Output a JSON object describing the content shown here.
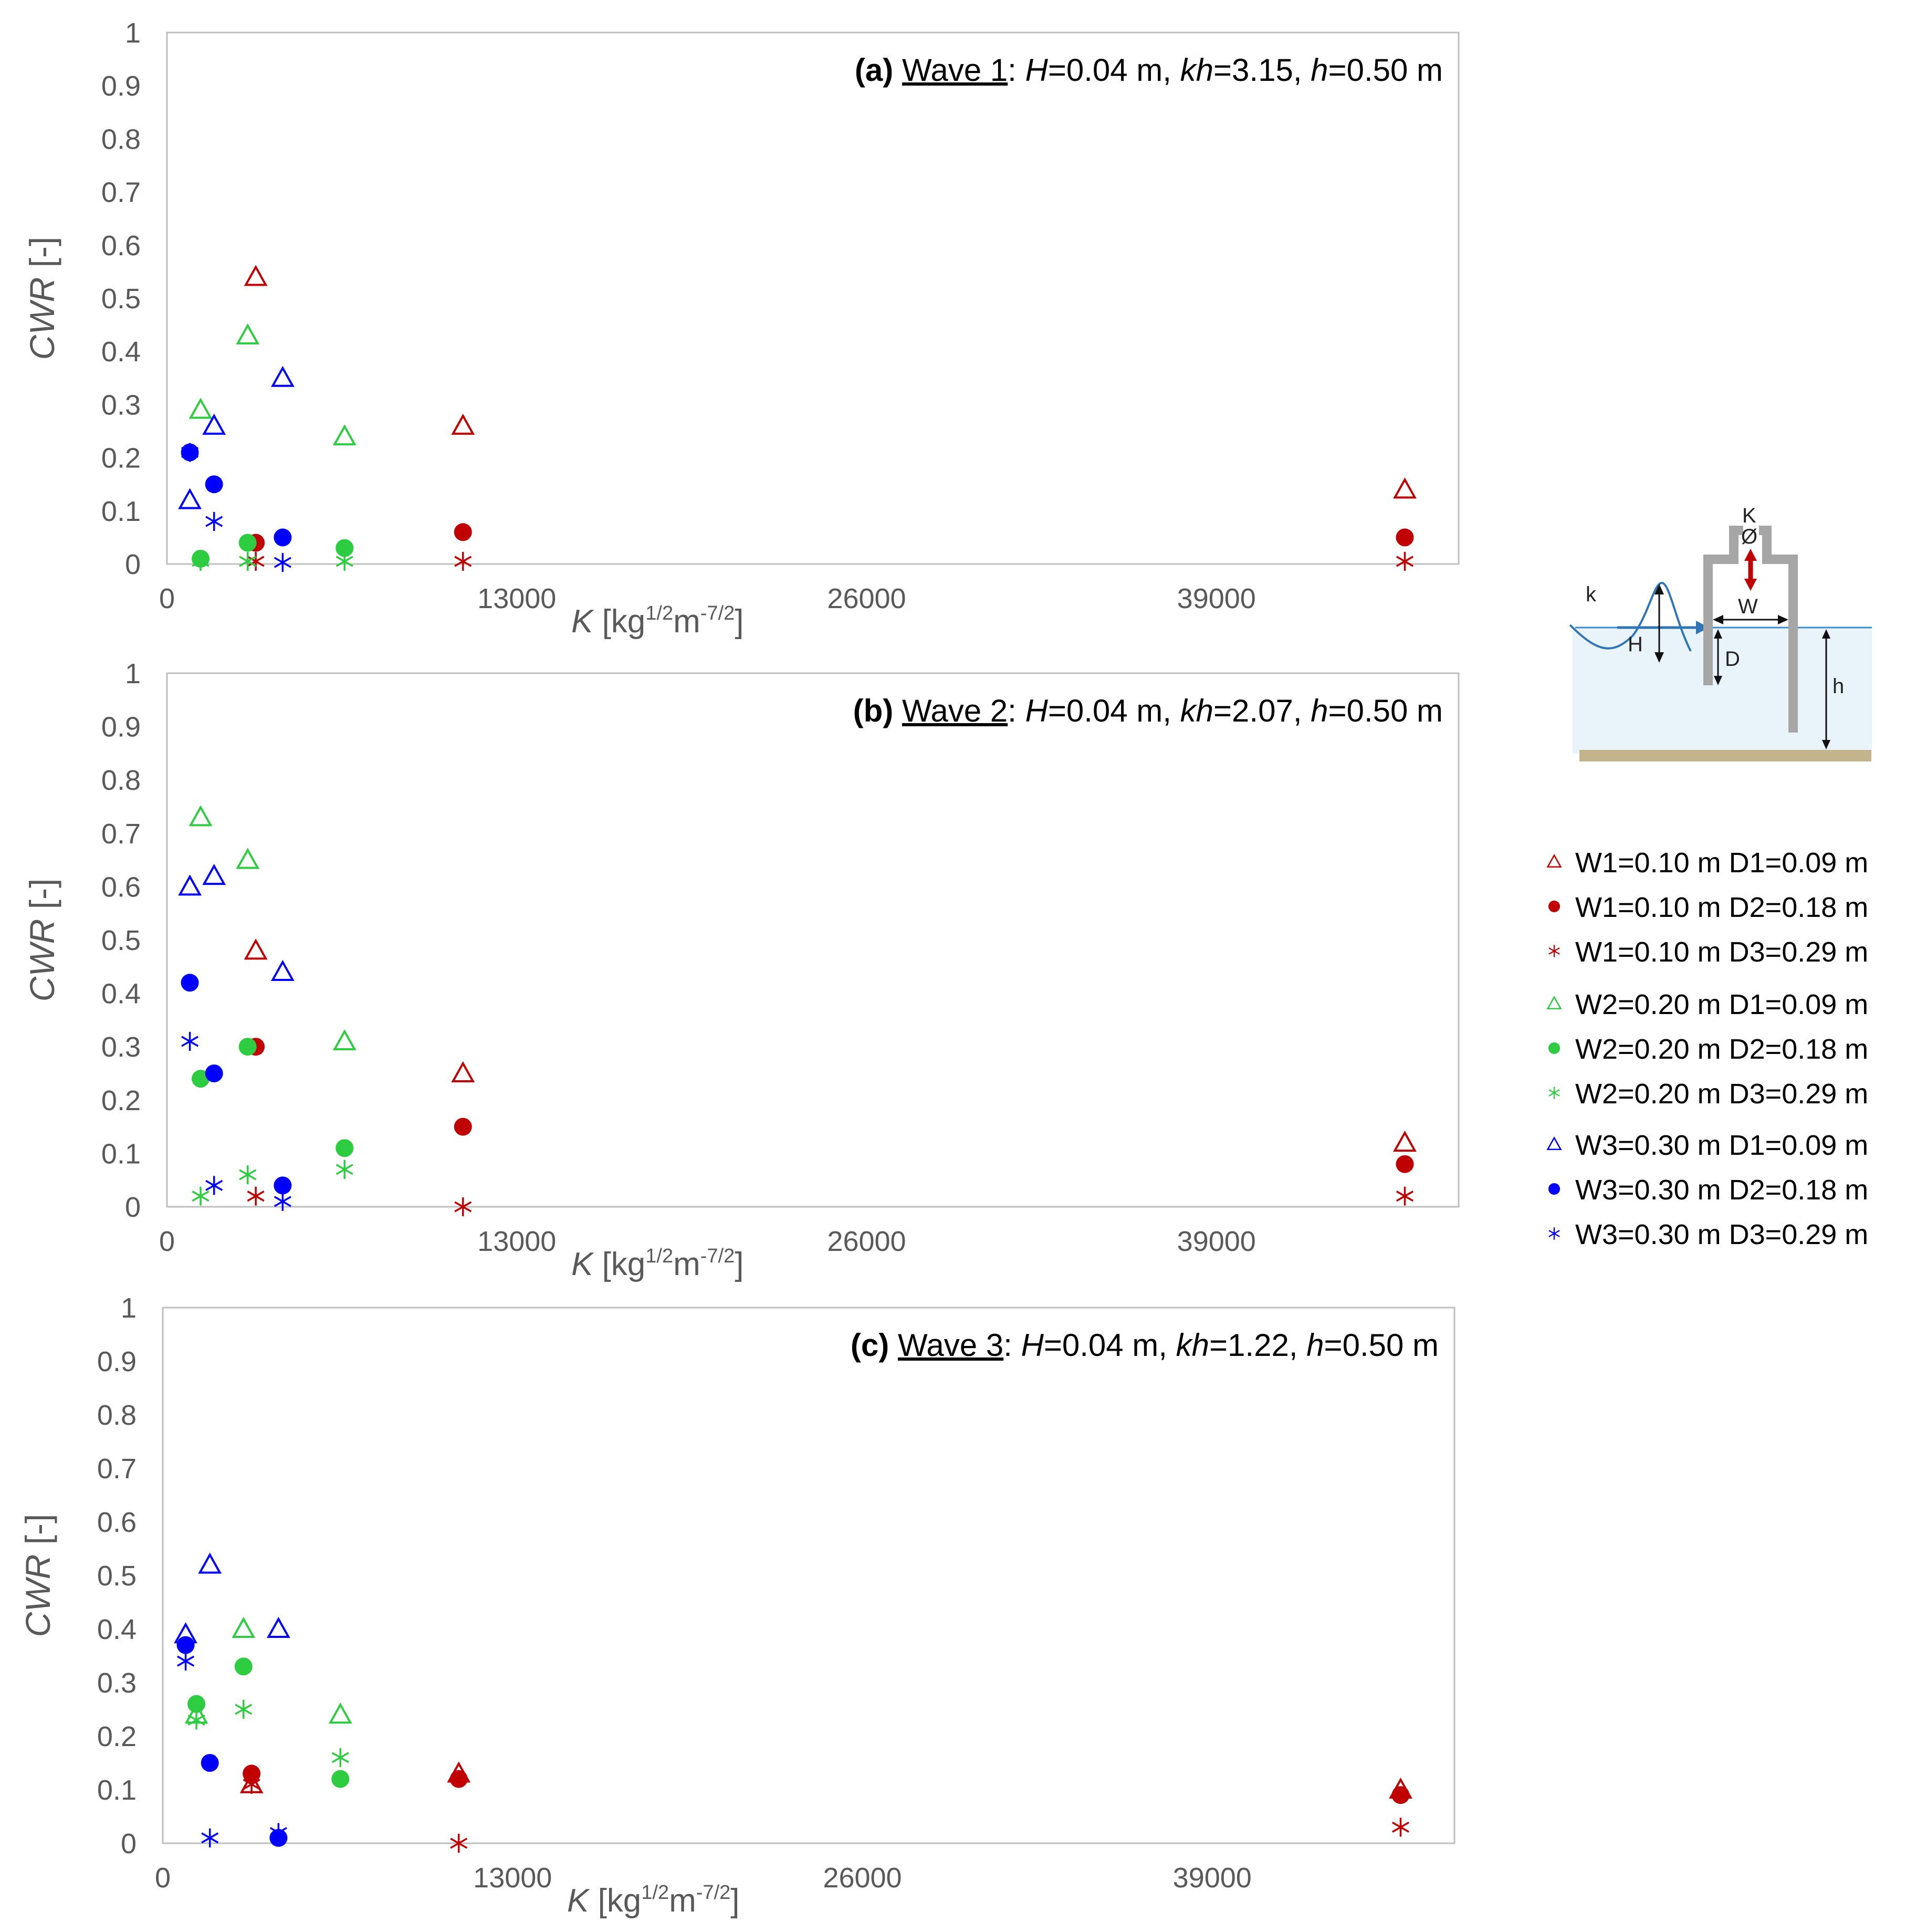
{
  "colors": {
    "W1": "#c00000",
    "W2": "#2ecc40",
    "W3": "#0000ff",
    "axis": "#bfbfbf",
    "text": "#595959"
  },
  "axes": {
    "ylabel": "CWR [-]",
    "ylabel_main": "CWR",
    "ylabel_unit": " [-]",
    "xlabel_var": "K",
    "xlabel_open": " [kg",
    "xlabel_exp1": "1/2",
    "xlabel_mid": "m",
    "xlabel_exp2": "-7/2",
    "xlabel_close": "]",
    "xlim": [
      0,
      48000
    ],
    "ylim": [
      0,
      1
    ],
    "xticks": [
      "0",
      "13000",
      "26000",
      "39000"
    ],
    "yticks": [
      "0",
      "0.1",
      "0.2",
      "0.3",
      "0.4",
      "0.5",
      "0.6",
      "0.7",
      "0.8",
      "0.9",
      "1"
    ]
  },
  "legend": {
    "entries": [
      {
        "key": "W1D1",
        "label": "W1=0.10 m D1=0.09 m",
        "marker": "triangle",
        "color": "#c00000"
      },
      {
        "key": "W1D2",
        "label": "W1=0.10 m D2=0.18 m",
        "marker": "circle",
        "color": "#c00000"
      },
      {
        "key": "W1D3",
        "label": "W1=0.10 m D3=0.29 m",
        "marker": "star",
        "color": "#c00000"
      },
      {
        "key": "W2D1",
        "label": "W2=0.20 m D1=0.09 m",
        "marker": "triangle",
        "color": "#2ecc40"
      },
      {
        "key": "W2D2",
        "label": "W2=0.20 m D2=0.18 m",
        "marker": "circle",
        "color": "#2ecc40"
      },
      {
        "key": "W2D3",
        "label": "W2=0.20 m D3=0.29 m",
        "marker": "star",
        "color": "#2ecc40"
      },
      {
        "key": "W3D1",
        "label": "W3=0.30 m D1=0.09 m",
        "marker": "triangle",
        "color": "#0000ff"
      },
      {
        "key": "W3D2",
        "label": "W3=0.30 m D2=0.18 m",
        "marker": "circle",
        "color": "#0000ff"
      },
      {
        "key": "W3D3",
        "label": "W3=0.30 m D3=0.29 m",
        "marker": "star",
        "color": "#0000ff"
      }
    ]
  },
  "diagram": {
    "K": "K",
    "k": "k",
    "H": "H",
    "W": "W",
    "D": "D",
    "h": "h",
    "valve": "Ø"
  },
  "chart_data": [
    {
      "type": "scatter",
      "panel": "(a)",
      "wave": "Wave 1",
      "H": "0.04 m",
      "kh": "3.15",
      "h": "0.50 m",
      "series": [
        {
          "key": "W1D1",
          "x": [
            3300,
            11000,
            46000
          ],
          "y": [
            0.54,
            0.26,
            0.14
          ]
        },
        {
          "key": "W1D2",
          "x": [
            3300,
            11000,
            46000
          ],
          "y": [
            0.04,
            0.06,
            0.05
          ]
        },
        {
          "key": "W1D3",
          "x": [
            3300,
            11000,
            46000
          ],
          "y": [
            0.005,
            0.005,
            0.005
          ]
        },
        {
          "key": "W2D1",
          "x": [
            1250,
            3000,
            6600
          ],
          "y": [
            0.29,
            0.43,
            0.24
          ]
        },
        {
          "key": "W2D2",
          "x": [
            1250,
            3000,
            6600
          ],
          "y": [
            0.01,
            0.04,
            0.03
          ]
        },
        {
          "key": "W2D3",
          "x": [
            1250,
            3000,
            6600
          ],
          "y": [
            0.005,
            0.005,
            0.005
          ]
        },
        {
          "key": "W3D1",
          "x": [
            850,
            1750,
            4300
          ],
          "y": [
            0.12,
            0.26,
            0.35
          ]
        },
        {
          "key": "W3D2",
          "x": [
            850,
            1750,
            4300
          ],
          "y": [
            0.21,
            0.15,
            0.05
          ]
        },
        {
          "key": "W3D3",
          "x": [
            850,
            1750,
            4300
          ],
          "y": [
            0.21,
            0.08,
            0.003
          ]
        }
      ]
    },
    {
      "type": "scatter",
      "panel": "(b)",
      "wave": "Wave 2",
      "H": "0.04 m",
      "kh": "2.07",
      "h": "0.50 m",
      "series": [
        {
          "key": "W1D1",
          "x": [
            3300,
            11000,
            46000
          ],
          "y": [
            0.48,
            0.25,
            0.12
          ]
        },
        {
          "key": "W1D2",
          "x": [
            3300,
            11000,
            46000
          ],
          "y": [
            0.3,
            0.15,
            0.08
          ]
        },
        {
          "key": "W1D3",
          "x": [
            3300,
            11000,
            46000
          ],
          "y": [
            0.02,
            0.0,
            0.02
          ]
        },
        {
          "key": "W2D1",
          "x": [
            1250,
            3000,
            6600
          ],
          "y": [
            0.73,
            0.65,
            0.31
          ]
        },
        {
          "key": "W2D2",
          "x": [
            1250,
            3000,
            6600
          ],
          "y": [
            0.24,
            0.3,
            0.11
          ]
        },
        {
          "key": "W2D3",
          "x": [
            1250,
            3000,
            6600
          ],
          "y": [
            0.02,
            0.06,
            0.07
          ]
        },
        {
          "key": "W3D1",
          "x": [
            850,
            1750,
            4300
          ],
          "y": [
            0.6,
            0.62,
            0.44
          ]
        },
        {
          "key": "W3D2",
          "x": [
            850,
            1750,
            4300
          ],
          "y": [
            0.42,
            0.25,
            0.04
          ]
        },
        {
          "key": "W3D3",
          "x": [
            850,
            1750,
            4300
          ],
          "y": [
            0.31,
            0.04,
            0.01
          ]
        }
      ]
    },
    {
      "type": "scatter",
      "panel": "(c)",
      "wave": "Wave 3",
      "H": "0.04 m",
      "kh": "1.22",
      "h": "0.50 m",
      "series": [
        {
          "key": "W1D1",
          "x": [
            3300,
            11000,
            46000
          ],
          "y": [
            0.11,
            0.13,
            0.1
          ]
        },
        {
          "key": "W1D2",
          "x": [
            3300,
            11000,
            46000
          ],
          "y": [
            0.13,
            0.12,
            0.09
          ]
        },
        {
          "key": "W1D3",
          "x": [
            3300,
            11000,
            46000
          ],
          "y": [
            0.11,
            0.0,
            0.03
          ]
        },
        {
          "key": "W2D1",
          "x": [
            1250,
            3000,
            6600
          ],
          "y": [
            0.24,
            0.4,
            0.24
          ]
        },
        {
          "key": "W2D2",
          "x": [
            1250,
            3000,
            6600
          ],
          "y": [
            0.26,
            0.33,
            0.12
          ]
        },
        {
          "key": "W2D3",
          "x": [
            1250,
            3000,
            6600
          ],
          "y": [
            0.23,
            0.25,
            0.16
          ]
        },
        {
          "key": "W3D1",
          "x": [
            850,
            1750,
            4300
          ],
          "y": [
            0.39,
            0.52,
            0.4
          ]
        },
        {
          "key": "W3D2",
          "x": [
            850,
            1750,
            4300
          ],
          "y": [
            0.37,
            0.15,
            0.01
          ]
        },
        {
          "key": "W3D3",
          "x": [
            850,
            1750,
            4300
          ],
          "y": [
            0.34,
            0.01,
            0.02
          ]
        }
      ]
    }
  ]
}
